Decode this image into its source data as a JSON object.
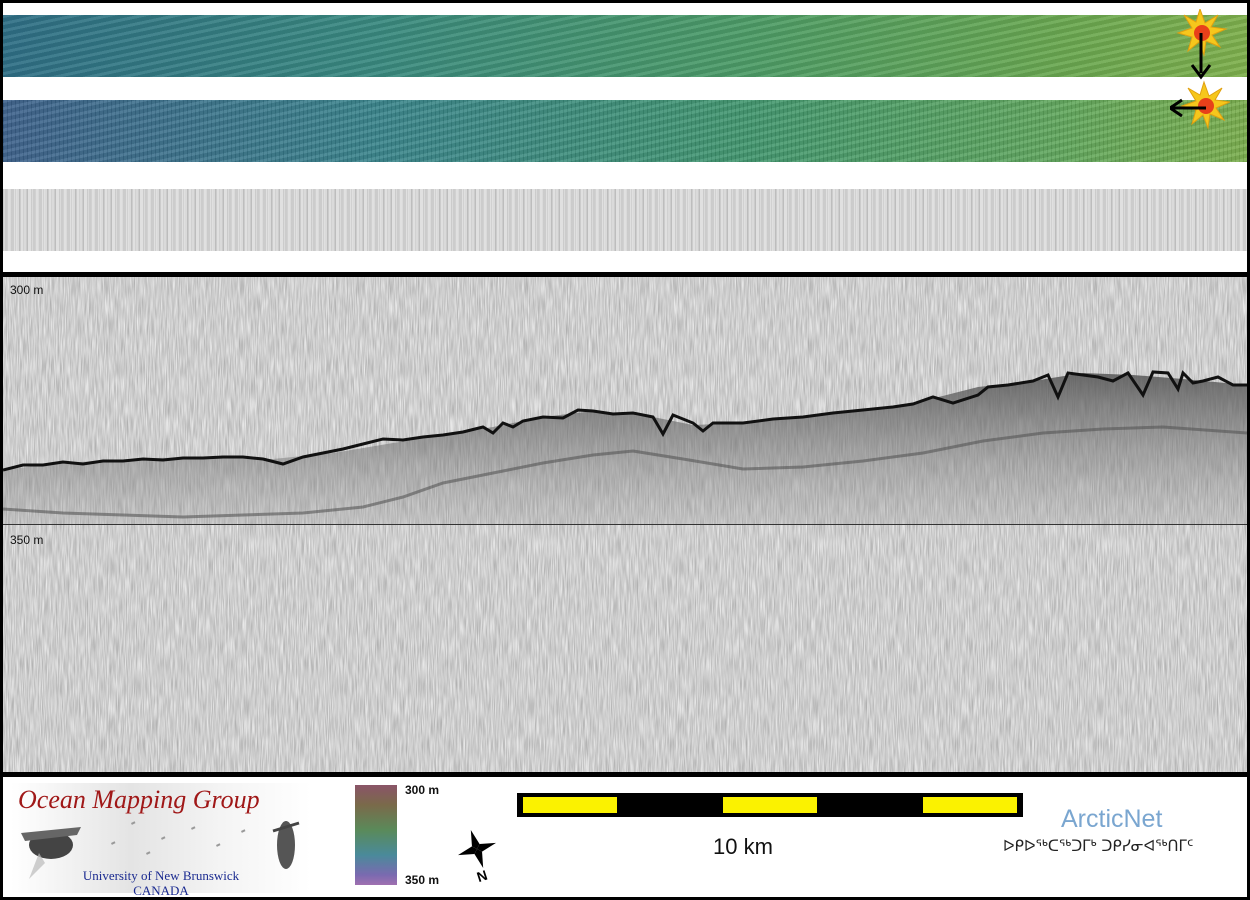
{
  "profile": {
    "depth_top_label": "300 m",
    "depth_mid_label": "350 m"
  },
  "legend": {
    "logo_title": "Ocean Mapping Group",
    "logo_university": "University of New Brunswick",
    "logo_country": "CANADA",
    "colorbar_top": "300 m",
    "colorbar_bottom": "350 m",
    "north_label": "N",
    "scale_label": "10 km",
    "partner_name": "ArcticNet",
    "partner_syllabics": "ᐅᑭᐅᖅᑕᖅᑐᒥᒃ ᑐᑭᓯᓂᐊᖅᑎᒥᑦ"
  },
  "colors": {
    "frame": "#000000",
    "scale_fill": "#fbf200",
    "logo_red": "#a01818",
    "logo_blue": "#1a2a90",
    "partner_blue": "#7aa6d0"
  },
  "icons": [
    "sun-illumination-icon",
    "arrow-down-icon",
    "arrow-left-icon",
    "north-arrow-icon"
  ]
}
